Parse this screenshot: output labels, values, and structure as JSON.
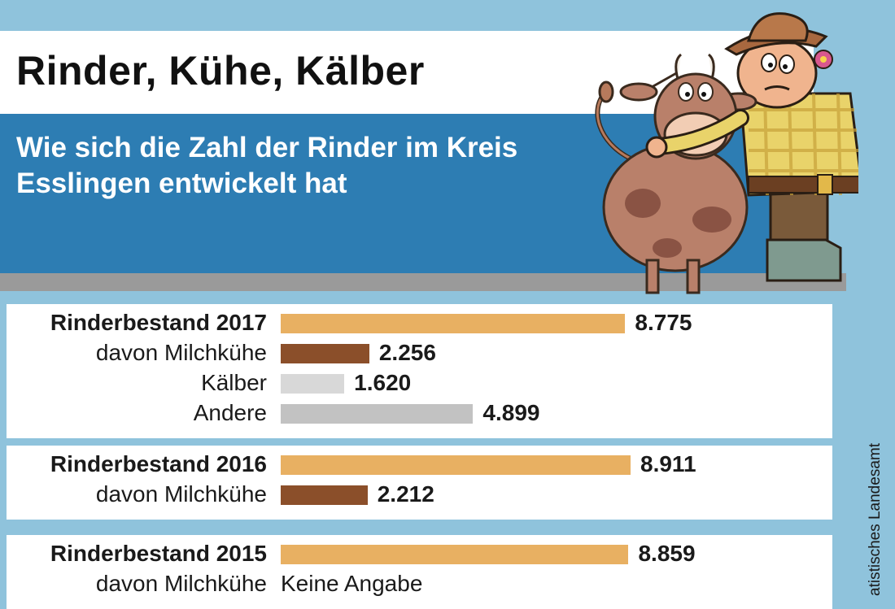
{
  "title": "Rinder, Kühe, Kälber",
  "subtitle": "Wie sich die Zahl der Rinder im Kreis Esslingen entwickelt hat",
  "source": "atistisches Landesamt",
  "colors": {
    "total": "#e8b062",
    "dairy": "#8b4f2a",
    "calves": "#d8d8d8",
    "other": "#c2c2c2"
  },
  "chart_data": {
    "type": "bar",
    "orientation": "horizontal",
    "title": "Rinder, Kühe, Kälber",
    "subtitle": "Wie sich die Zahl der Rinder im Kreis Esslingen entwickelt hat",
    "groups": [
      {
        "rows": [
          {
            "label": "Rinderbestand 2017",
            "value": 8775,
            "value_label": "8.775",
            "kind": "total"
          },
          {
            "label": "davon Milchkühe",
            "value": 2256,
            "value_label": "2.256",
            "kind": "dairy"
          },
          {
            "label": "Kälber",
            "value": 1620,
            "value_label": "1.620",
            "kind": "calves"
          },
          {
            "label": "Andere",
            "value": 4899,
            "value_label": "4.899",
            "kind": "other"
          }
        ]
      },
      {
        "rows": [
          {
            "label": "Rinderbestand 2016",
            "value": 8911,
            "value_label": "8.911",
            "kind": "total"
          },
          {
            "label": "davon Milchkühe",
            "value": 2212,
            "value_label": "2.212",
            "kind": "dairy"
          }
        ]
      },
      {
        "rows": [
          {
            "label": "Rinderbestand 2015",
            "value": 8859,
            "value_label": "8.859",
            "kind": "total"
          },
          {
            "label": "davon Milchkühe",
            "value": null,
            "note": "Keine Angabe",
            "kind": "dairy"
          }
        ]
      }
    ],
    "xlim": [
      0,
      8911
    ],
    "grid": false,
    "legend": "none"
  }
}
